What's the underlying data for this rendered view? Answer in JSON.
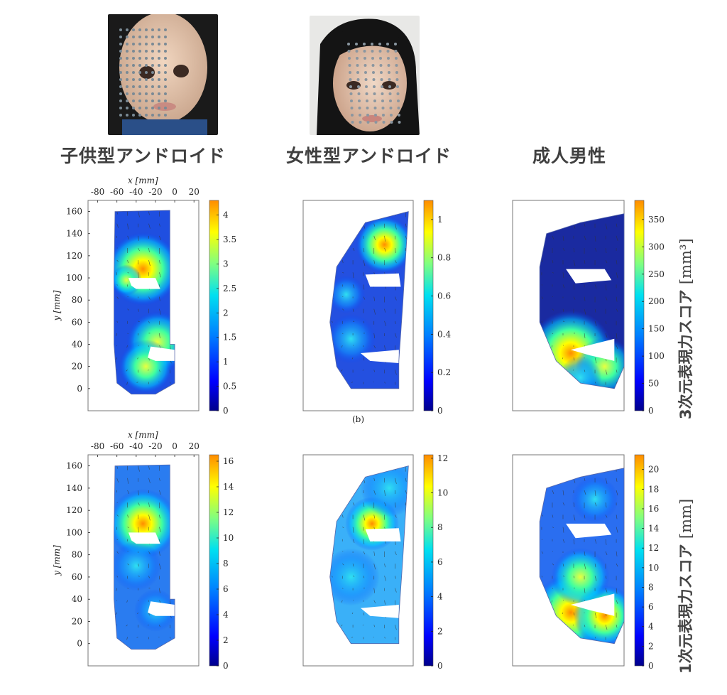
{
  "headers": [
    "子供型アンドロイド",
    "女性型アンドロイド",
    "成人男性"
  ],
  "photos": [
    {
      "name": "child-android-photo",
      "subject": "child android face with markers"
    },
    {
      "name": "female-android-photo",
      "subject": "female android face with markers"
    }
  ],
  "row_labels": [
    {
      "text": "3次元表現力スコア",
      "unit": "[mm³]"
    },
    {
      "text": "1次元表現力スコア",
      "unit": "[mm]"
    }
  ],
  "axes": {
    "x_label": "x [mm]",
    "y_label": "y [mm]",
    "x_ticks": [
      "-80",
      "-60",
      "-40",
      "-20",
      "0",
      "20"
    ],
    "y_ticks": [
      "160",
      "140",
      "120",
      "100",
      "80",
      "60",
      "40",
      "20",
      "0"
    ]
  },
  "panel_caption": "(b)",
  "colormap": [
    "#00008b",
    "#0000ff",
    "#0080ff",
    "#00e0f0",
    "#80ff80",
    "#ffff00",
    "#ff8c00"
  ],
  "chart_data": [
    {
      "type": "heatmap",
      "title": "子供型アンドロイド 3次元表現力スコア",
      "colorbar_ticks": [
        0,
        0.5,
        1,
        1.5,
        2,
        2.5,
        3,
        3.5,
        4
      ],
      "colorbar_max": 4.3,
      "hotspots": [
        {
          "x": -33,
          "y": 108,
          "value": 4.2
        },
        {
          "x": -18,
          "y": 42,
          "value": 3.0
        },
        {
          "x": -30,
          "y": 20,
          "value": 2.6
        }
      ]
    },
    {
      "type": "heatmap",
      "title": "女性型アンドロイド 3次元表現力スコア",
      "colorbar_ticks": [
        0,
        0.2,
        0.4,
        0.6,
        0.8,
        1
      ],
      "colorbar_max": 1.1,
      "hotspots": [
        {
          "x": -5,
          "y": 132,
          "value": 1.05
        },
        {
          "x": -45,
          "y": 45,
          "value": 0.45
        }
      ]
    },
    {
      "type": "heatmap",
      "title": "成人男性 3次元表現力スコア",
      "colorbar_ticks": [
        0,
        50,
        100,
        150,
        200,
        250,
        300,
        350
      ],
      "colorbar_max": 385,
      "hotspots": [
        {
          "x": -30,
          "y": 32,
          "value": 385
        }
      ]
    },
    {
      "type": "heatmap",
      "title": "子供型アンドロイド 1次元表現力スコア",
      "colorbar_ticks": [
        0,
        2,
        4,
        6,
        8,
        10,
        12,
        14,
        16
      ],
      "colorbar_max": 16.5,
      "hotspots": [
        {
          "x": -33,
          "y": 108,
          "value": 16
        }
      ]
    },
    {
      "type": "heatmap",
      "title": "女性型アンドロイド 1次元表現力スコア",
      "colorbar_ticks": [
        0,
        2,
        4,
        6,
        8,
        10,
        12
      ],
      "colorbar_max": 12.2,
      "hotspots": [
        {
          "x": -20,
          "y": 108,
          "value": 12
        }
      ]
    },
    {
      "type": "heatmap",
      "title": "成人男性 1次元表現力スコア",
      "colorbar_ticks": [
        0,
        2,
        4,
        6,
        8,
        10,
        12,
        14,
        16,
        18,
        20
      ],
      "colorbar_max": 21.5,
      "hotspots": [
        {
          "x": -30,
          "y": 30,
          "value": 20
        }
      ]
    }
  ]
}
